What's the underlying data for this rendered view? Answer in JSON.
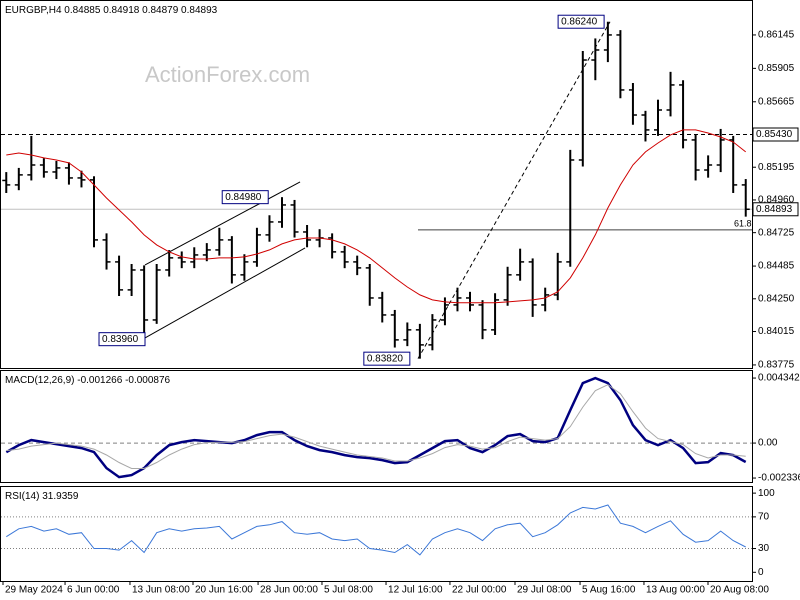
{
  "watermark": "ActionForex.com",
  "chart_data": [
    {
      "type": "candlestick",
      "title": "EURGBP,H4  0.84885 0.84918 0.84879 0.84893",
      "xlim": [
        0,
        60
      ],
      "ylim": [
        0.83753,
        0.86396
      ],
      "yticks": [
        0.86145,
        0.85905,
        0.85665,
        0.85195,
        {
          "value": 0.8496,
          "label": "0.84960"
        },
        0.84725,
        0.84485,
        {
          "value": 0.8425,
          "label": "0.84250"
        },
        0.84015,
        0.83775
      ],
      "open": [
        0.851,
        0.85068,
        0.8514,
        0.85211,
        0.85161,
        0.8519,
        0.85118,
        0.85104,
        0.84673,
        0.84515,
        0.84314,
        0.84457,
        0.84098,
        0.84457,
        0.84544,
        0.84515,
        0.84565,
        0.84601,
        0.84673,
        0.84422,
        0.84515,
        0.84709,
        0.84802,
        0.84924,
        0.8473,
        0.84673,
        0.84687,
        0.84587,
        0.84515,
        0.84472,
        0.84256,
        0.84134,
        0.83955,
        0.84027,
        0.83919,
        0.84098,
        0.84206,
        0.84256,
        0.84206,
        0.84027,
        0.84242,
        0.84422,
        0.84515,
        0.84206,
        0.84278,
        0.84515,
        0.85247,
        0.85965,
        0.86037,
        0.86145,
        0.8575,
        0.8557,
        0.85463,
        0.85606,
        0.85786,
        0.85391,
        0.85175,
        0.85211,
        0.85391,
        0.85068
      ],
      "high": [
        0.8516,
        0.8519,
        0.8542,
        0.8526,
        0.8524,
        0.8523,
        0.8517,
        0.8513,
        0.8472,
        0.8456,
        0.845,
        0.8449,
        0.845,
        0.846,
        0.8459,
        0.8462,
        0.8465,
        0.8476,
        0.847,
        0.8457,
        0.8476,
        0.8485,
        0.8498,
        0.8496,
        0.8478,
        0.8475,
        0.8472,
        0.8463,
        0.8456,
        0.845,
        0.843,
        0.8417,
        0.8408,
        0.8407,
        0.8414,
        0.8426,
        0.8433,
        0.843,
        0.8424,
        0.8429,
        0.8448,
        0.8461,
        0.8454,
        0.8433,
        0.8458,
        0.8532,
        0.8603,
        0.8612,
        0.8624,
        0.8618,
        0.858,
        0.856,
        0.8568,
        0.8588,
        0.8582,
        0.8543,
        0.8528,
        0.8547,
        0.8542,
        0.8511
      ],
      "low": [
        0.8501,
        0.8503,
        0.851,
        0.8512,
        0.8511,
        0.8507,
        0.8505,
        0.8462,
        0.8446,
        0.8427,
        0.8427,
        0.8396,
        0.8407,
        0.8441,
        0.8447,
        0.8447,
        0.8452,
        0.8456,
        0.8436,
        0.8438,
        0.8448,
        0.8466,
        0.8476,
        0.8469,
        0.8462,
        0.8462,
        0.8454,
        0.8447,
        0.8442,
        0.842,
        0.8408,
        0.839,
        0.8391,
        0.8382,
        0.8388,
        0.8406,
        0.8416,
        0.8416,
        0.8396,
        0.8399,
        0.842,
        0.8438,
        0.8412,
        0.8416,
        0.8424,
        0.8448,
        0.852,
        0.8582,
        0.8595,
        0.8569,
        0.855,
        0.8538,
        0.8542,
        0.8556,
        0.8533,
        0.851,
        0.8512,
        0.8516,
        0.8501,
        0.8484
      ],
      "close": [
        0.85068,
        0.8514,
        0.85211,
        0.85161,
        0.8519,
        0.85118,
        0.85104,
        0.84673,
        0.84515,
        0.84314,
        0.84457,
        0.84098,
        0.84457,
        0.84544,
        0.84515,
        0.84565,
        0.84601,
        0.84673,
        0.84422,
        0.84515,
        0.84709,
        0.84802,
        0.84924,
        0.8473,
        0.84673,
        0.84687,
        0.84587,
        0.84515,
        0.84472,
        0.84256,
        0.84134,
        0.83955,
        0.84027,
        0.83919,
        0.84098,
        0.84206,
        0.84256,
        0.84206,
        0.84027,
        0.84242,
        0.84422,
        0.84515,
        0.84206,
        0.84278,
        0.84515,
        0.85247,
        0.85965,
        0.86037,
        0.86145,
        0.8575,
        0.8557,
        0.85463,
        0.85606,
        0.85786,
        0.85391,
        0.85175,
        0.85211,
        0.85391,
        0.85068,
        0.84893
      ],
      "color": "#000000",
      "series": [
        {
          "color": "#d00000",
          "values": [
            0.85283,
            0.85297,
            0.85283,
            0.85262,
            0.85247,
            0.85226,
            0.85161,
            0.85068,
            0.84974,
            0.84888,
            0.84802,
            0.84709,
            0.84637,
            0.84587,
            0.84551,
            0.84536,
            0.84536,
            0.84544,
            0.84544,
            0.84551,
            0.84572,
            0.84601,
            0.84644,
            0.84673,
            0.84687,
            0.84687,
            0.84673,
            0.84644,
            0.84601,
            0.84544,
            0.84472,
            0.844,
            0.84335,
            0.84278,
            0.84242,
            0.84228,
            0.84221,
            0.84221,
            0.84221,
            0.84221,
            0.84228,
            0.84235,
            0.84242,
            0.84256,
            0.843,
            0.844,
            0.84544,
            0.84709,
            0.84903,
            0.85068,
            0.85211,
            0.85305,
            0.85369,
            0.85427,
            0.85463,
            0.85463,
            0.85441,
            0.85412,
            0.85376,
            0.85305
          ]
        }
      ],
      "levels": [
        {
          "value": 0.8543,
          "label": "0.85430",
          "style": "dashed",
          "color": "#000000",
          "box": true
        },
        {
          "value": 0.84893,
          "style": "solid",
          "color": "#c0c0c0",
          "box": true
        },
        {
          "value": 0.84745,
          "label": "61.8",
          "style": "solid",
          "color": "#404040",
          "from": 33.35
        }
      ],
      "annotations": [
        {
          "x": 11.57,
          "value": 0.8396,
          "label": "0.83960"
        },
        {
          "x": 21.4,
          "value": 0.8498,
          "label": "0.84980"
        },
        {
          "x": 32.7,
          "value": 0.8382,
          "label": "0.83820"
        },
        {
          "x": 48.2,
          "value": 0.8624,
          "label": "0.86240"
        }
      ],
      "trendlines": [
        {
          "x": [
            11.57,
            23.94
          ],
          "y": [
            0.84493,
            0.85089
          ],
          "style": "solid"
        },
        {
          "x": [
            11.57,
            24.34
          ],
          "y": [
            0.83969,
            0.84615
          ],
          "style": "solid"
        },
        {
          "x": [
            33.35,
            48.67
          ],
          "y": [
            0.8382,
            0.8624
          ],
          "style": "dashed"
        }
      ]
    },
    {
      "type": "line",
      "title": "MACD(12,26,9)",
      "xlim": [
        0,
        60
      ],
      "ylim": [
        -0.0026,
        0.00488
      ],
      "yticks": [
        0.004342,
        {
          "value": 0,
          "label": "0.00"
        },
        -0.002336
      ],
      "levels": [
        {
          "value": 0,
          "style": "dashed",
          "color": "#808080"
        }
      ],
      "series": [
        {
          "color": "#000080",
          "style": "thick",
          "values": [
            -0.000601,
            -0.000134,
            0.0002,
            6.7e-05,
            -6.7e-05,
            -0.0002,
            -0.000334,
            -0.000601,
            -0.00167,
            -0.002271,
            -0.002137,
            -0.00167,
            -0.000801,
            -0.000134,
            6.7e-05,
            0.0002,
            0.000134,
            6.7e-05,
            0,
            0.0002,
            0.000534,
            0.000735,
            0.000735,
            0.0002,
            -0.0002,
            -0.000467,
            -0.000601,
            -0.000801,
            -0.000935,
            -0.001002,
            -0.001135,
            -0.001336,
            -0.001269,
            -0.000801,
            -0.000334,
            0.000134,
            0.0002,
            -0.000334,
            -0.000601,
            -0.000134,
            0.000467,
            0.000601,
            0.000134,
            6.7e-05,
            0.000334,
            0.002204,
            0.004007,
            0.004341,
            0.004007,
            0.002872,
            0.001202,
            0.0002,
            -0.000134,
            0.0002,
            -0.000334,
            -0.001336,
            -0.001269,
            -0.000668,
            -0.000801,
            -0.001266
          ]
        },
        {
          "color": "#a8a8a8",
          "style": "thin",
          "values": [
            -0.0005,
            -0.0004,
            -0.0002,
            -0.0001,
            0,
            -0.0001,
            -0.0002,
            -0.0004,
            -0.0008,
            -0.0013,
            -0.0017,
            -0.0017,
            -0.0013,
            -0.0008,
            -0.0004,
            -0.0001,
            3e-05,
            6e-05,
            5e-05,
            0.0001,
            0.0003,
            0.0005,
            0.0006,
            0.0004,
            0.0001,
            -0.0002,
            -0.0004,
            -0.0006,
            -0.0008,
            -0.0009,
            -0.001,
            -0.0012,
            -0.0012,
            -0.001,
            -0.0007,
            -0.0003,
            -0.0001,
            -0.0002,
            -0.0004,
            -0.0003,
            0.0001,
            0.0004,
            0.0003,
            0.0002,
            0.0003,
            0.0011,
            0.0024,
            0.0035,
            0.0039,
            0.0033,
            0.0021,
            0.001,
            0.0003,
            0.0001,
            -0.0001,
            -0.0007,
            -0.001,
            -0.0008,
            -0.0008,
            -0.000876
          ]
        }
      ]
    },
    {
      "type": "line",
      "title": "RSI(14)",
      "xlim": [
        0,
        60
      ],
      "ylim": [
        -11,
        109
      ],
      "yticks": [
        100,
        70,
        30,
        0
      ],
      "levels": [
        {
          "value": 70,
          "style": "dotted",
          "color": "#808080"
        },
        {
          "value": 30,
          "style": "dotted",
          "color": "#808080"
        }
      ],
      "series": [
        {
          "color": "#3c78d8",
          "style": "thin",
          "values": [
            45,
            55,
            58,
            52,
            55,
            48,
            50,
            30,
            30,
            28,
            40,
            25,
            50,
            55,
            52,
            55,
            56,
            58,
            42,
            50,
            58,
            60,
            64,
            50,
            48,
            50,
            42,
            40,
            42,
            30,
            28,
            25,
            35,
            22,
            42,
            50,
            55,
            50,
            40,
            55,
            60,
            62,
            45,
            50,
            60,
            75,
            82,
            80,
            85,
            62,
            58,
            50,
            58,
            65,
            48,
            38,
            40,
            52,
            40,
            31.9359
          ]
        }
      ],
      "xticks": [
        {
          "value": 0.24,
          "label": "29 May 2024"
        },
        {
          "value": 5.19,
          "label": "6 Jun 00:00"
        },
        {
          "value": 10.37,
          "label": "13 Jun 08:00"
        },
        {
          "value": 15.4,
          "label": "20 Jun 16:00"
        },
        {
          "value": 20.59,
          "label": "28 Jun 00:00"
        },
        {
          "value": 25.69,
          "label": "5 Jul 08:00"
        },
        {
          "value": 30.8,
          "label": "12 Jul 16:00"
        },
        {
          "value": 35.9,
          "label": "22 Jul 00:00"
        },
        {
          "value": 41.09,
          "label": "29 Jul 08:00"
        },
        {
          "value": 46.28,
          "label": "5 Aug 16:00"
        },
        {
          "value": 51.38,
          "label": "13 Aug 00:00"
        },
        {
          "value": 56.49,
          "label": "20 Aug 08:00"
        }
      ]
    }
  ]
}
